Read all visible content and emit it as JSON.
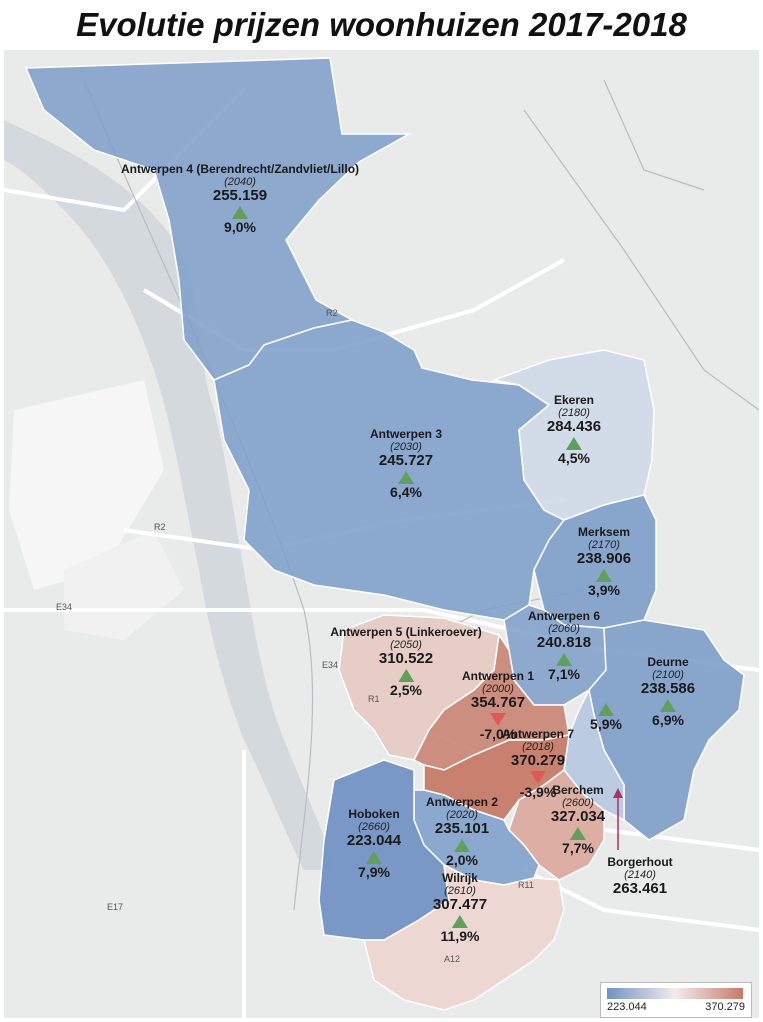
{
  "title": "Evolutie prijzen woonhuizen 2017-2018",
  "colors": {
    "low": "#6f93c2",
    "mid": "#f2ecec",
    "high": "#c87a6a",
    "up": "#5fa05a",
    "down": "#e05858",
    "water": "#cfd6dd",
    "land": "#e9eaea"
  },
  "districts": [
    {
      "name": "Antwerpen 4 (Berendrecht/Zandvliet/Lillo)",
      "code": "(2040)",
      "price": "255.159",
      "change": "9,0%",
      "trend": "up"
    },
    {
      "name": "Ekeren",
      "code": "(2180)",
      "price": "284.436",
      "change": "4,5%",
      "trend": "up"
    },
    {
      "name": "Antwerpen 3",
      "code": "(2030)",
      "price": "245.727",
      "change": "6,4%",
      "trend": "up"
    },
    {
      "name": "Merksem",
      "code": "(2170)",
      "price": "238.906",
      "change": "3,9%",
      "trend": "up"
    },
    {
      "name": "Antwerpen 6",
      "code": "(2060)",
      "price": "240.818",
      "change": "7,1%",
      "trend": "up"
    },
    {
      "name": "Antwerpen 5 (Linkeroever)",
      "code": "(2050)",
      "price": "310.522",
      "change": "2,5%",
      "trend": "up"
    },
    {
      "name": "Deurne",
      "code": "(2100)",
      "price": "238.586",
      "change": "6,9%",
      "trend": "up"
    },
    {
      "name": "Antwerpen 1",
      "code": "(2000)",
      "price": "354.767",
      "change": "-7,0%",
      "trend": "down"
    },
    {
      "name": "Antwerpen 7",
      "code": "(2018)",
      "price": "370.279",
      "change": "-3,9%",
      "trend": "down"
    },
    {
      "name": "Hoboken",
      "code": "(2660)",
      "price": "223.044",
      "change": "7,9%",
      "trend": "up"
    },
    {
      "name": "Antwerpen 2",
      "code": "(2020)",
      "price": "235.101",
      "change": "2,0%",
      "trend": "up"
    },
    {
      "name": "Berchem",
      "code": "(2600)",
      "price": "327.034",
      "change": "7,7%",
      "trend": "up"
    },
    {
      "name": "Borgerhout",
      "code": "(2140)",
      "price": "263.461",
      "change": "5,9%",
      "trend": "up"
    },
    {
      "name": "Wilrijk",
      "code": "(2610)",
      "price": "307.477",
      "change": "11,9%",
      "trend": "up"
    }
  ],
  "road_labels": [
    "R2",
    "R2",
    "E34",
    "E34",
    "E17",
    "R1",
    "R11",
    "A12"
  ],
  "legend": {
    "min": "223.044",
    "max": "370.279"
  }
}
